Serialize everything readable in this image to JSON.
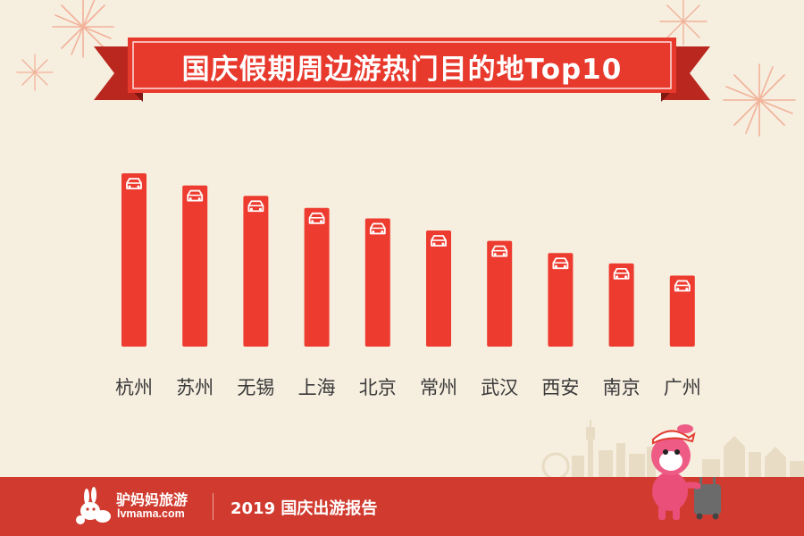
{
  "title": "国庆假期周边游热门目的地Top10",
  "footer": {
    "logo_name": "驴妈妈旅游",
    "logo_url": "lvmama.com",
    "report_title": "2019 国庆出游报告"
  },
  "colors": {
    "background": "#f6eedf",
    "bar": "#ee3b2f",
    "banner": "#e8392d",
    "footer": "#d13b2f"
  },
  "chart_data": {
    "type": "bar",
    "title": "国庆假期周边游热门目的地Top10",
    "categories": [
      "杭州",
      "苏州",
      "无锡",
      "上海",
      "北京",
      "常州",
      "武汉",
      "西安",
      "南京",
      "广州"
    ],
    "values": [
      10,
      9.3,
      8.7,
      8.0,
      7.4,
      6.7,
      6.1,
      5.4,
      4.8,
      4.1
    ],
    "bar_icon": "car-icon",
    "xlabel": "",
    "ylabel": "",
    "ylim": [
      0,
      10
    ],
    "grid": false,
    "axis_values_shown": false
  }
}
